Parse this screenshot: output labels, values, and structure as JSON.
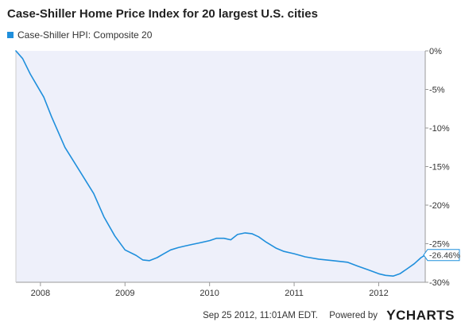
{
  "header": {
    "title": "Case-Shiller Home Price Index for 20 largest U.S. cities"
  },
  "legend": {
    "label": "Case-Shiller HPI: Composite 20"
  },
  "footer": {
    "timestamp": "Sep 25 2012, 11:01AM EDT.",
    "powered_by": "Powered by",
    "logo_text": "CHARTS",
    "logo_mark": "Y"
  },
  "colors": {
    "series": "#1f8fdc",
    "plot_background": "#eef0fa",
    "axis": "#9a9a9a",
    "gridline": "#cccccc"
  },
  "chart_data": {
    "type": "line",
    "title": "Case-Shiller Home Price Index for 20 largest U.S. cities",
    "xlabel": "",
    "ylabel": "",
    "x_ticks": [
      2008,
      2009,
      2010,
      2011,
      2012
    ],
    "y_ticks": [
      0,
      -5,
      -10,
      -15,
      -20,
      -25,
      -30
    ],
    "y_tick_labels": [
      "0%",
      "-5%",
      "-10%",
      "-15%",
      "-20%",
      "-25%",
      "-30%"
    ],
    "xlim": [
      2007.71,
      2012.55
    ],
    "ylim": [
      -30,
      0
    ],
    "grid": false,
    "legend_position": "top-left",
    "last_value_label": "-26.46%",
    "series": [
      {
        "name": "Case-Shiller HPI: Composite 20",
        "x": [
          2007.71,
          2007.79,
          2007.88,
          2007.96,
          2008.04,
          2008.13,
          2008.29,
          2008.46,
          2008.63,
          2008.75,
          2008.88,
          2009.0,
          2009.13,
          2009.21,
          2009.29,
          2009.38,
          2009.46,
          2009.54,
          2009.63,
          2009.71,
          2009.79,
          2009.88,
          2010.0,
          2010.08,
          2010.17,
          2010.25,
          2010.33,
          2010.42,
          2010.5,
          2010.58,
          2010.67,
          2010.79,
          2010.88,
          2011.0,
          2011.13,
          2011.29,
          2011.46,
          2011.63,
          2011.75,
          2011.88,
          2012.0,
          2012.08,
          2012.17,
          2012.25,
          2012.33,
          2012.42,
          2012.5,
          2012.55
        ],
        "y": [
          0,
          -1.0,
          -3.0,
          -4.5,
          -6.0,
          -8.5,
          -12.5,
          -15.5,
          -18.5,
          -21.5,
          -24.0,
          -25.8,
          -26.5,
          -27.1,
          -27.2,
          -26.8,
          -26.3,
          -25.8,
          -25.5,
          -25.3,
          -25.1,
          -24.9,
          -24.6,
          -24.3,
          -24.3,
          -24.5,
          -23.8,
          -23.6,
          -23.7,
          -24.1,
          -24.8,
          -25.6,
          -26.0,
          -26.3,
          -26.7,
          -27.0,
          -27.2,
          -27.4,
          -27.9,
          -28.4,
          -28.9,
          -29.1,
          -29.2,
          -28.9,
          -28.3,
          -27.6,
          -26.8,
          -26.46
        ]
      }
    ]
  }
}
